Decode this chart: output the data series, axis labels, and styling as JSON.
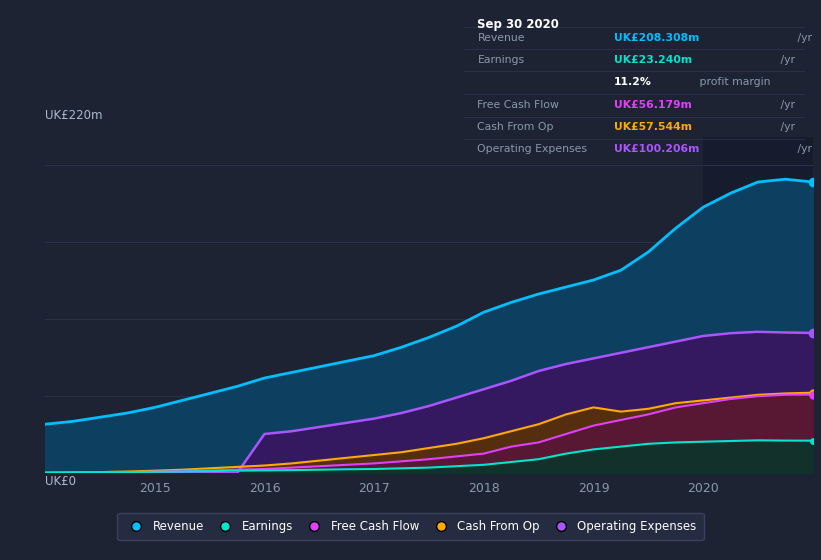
{
  "background_color": "#1e2333",
  "plot_bg_color": "#1e2333",
  "ylabel_top": "UK£220m",
  "ylabel_bottom": "UK£0",
  "years": [
    2014.0,
    2014.25,
    2014.5,
    2014.75,
    2015.0,
    2015.25,
    2015.5,
    2015.75,
    2016.0,
    2016.25,
    2016.5,
    2016.75,
    2017.0,
    2017.25,
    2017.5,
    2017.75,
    2018.0,
    2018.25,
    2018.5,
    2018.75,
    2019.0,
    2019.25,
    2019.5,
    2019.75,
    2020.0,
    2020.25,
    2020.5,
    2020.75,
    2021.0
  ],
  "revenue": [
    35,
    37,
    40,
    43,
    47,
    52,
    57,
    62,
    68,
    72,
    76,
    80,
    84,
    90,
    97,
    105,
    115,
    122,
    128,
    133,
    138,
    145,
    158,
    175,
    190,
    200,
    208,
    210,
    208
  ],
  "earnings": [
    0.5,
    0.6,
    0.7,
    0.8,
    1.0,
    1.2,
    1.5,
    1.8,
    2.0,
    2.2,
    2.5,
    2.8,
    3.0,
    3.5,
    4.0,
    5.0,
    6.0,
    8.0,
    10.0,
    14.0,
    17.0,
    19.0,
    21.0,
    22.0,
    22.5,
    23.0,
    23.5,
    23.3,
    23.24
  ],
  "free_cash_flow": [
    0.2,
    0.3,
    0.5,
    0.8,
    1.0,
    1.5,
    2.0,
    2.5,
    3.0,
    4.0,
    5.0,
    6.0,
    7.0,
    8.5,
    10.0,
    12.0,
    14.0,
    19.0,
    22.0,
    28.0,
    34.0,
    38.0,
    42.0,
    47.0,
    50.0,
    53.0,
    55.0,
    56.0,
    56.2
  ],
  "cash_from_op": [
    0.3,
    0.5,
    0.8,
    1.2,
    1.8,
    2.5,
    3.5,
    4.5,
    5.5,
    7.0,
    9.0,
    11.0,
    13.0,
    15.0,
    18.0,
    21.0,
    25.0,
    30.0,
    35.0,
    42.0,
    47.0,
    44.0,
    46.0,
    50.0,
    52.0,
    54.0,
    56.0,
    57.0,
    57.5
  ],
  "op_expenses": [
    0.0,
    0.0,
    0.0,
    0.0,
    0.0,
    0.0,
    0.0,
    0.0,
    28.0,
    30.0,
    33.0,
    36.0,
    39.0,
    43.0,
    48.0,
    54.0,
    60.0,
    66.0,
    73.0,
    78.0,
    82.0,
    86.0,
    90.0,
    94.0,
    98.0,
    100.0,
    101.0,
    100.5,
    100.2
  ],
  "revenue_color": "#00bfff",
  "earnings_color": "#00e5cc",
  "free_cash_flow_color": "#e040fb",
  "cash_from_op_color": "#ffaa00",
  "op_expenses_color": "#aa55ff",
  "grid_color": "#2a3050",
  "highlight_color": "#161c2e",
  "annotation_box_color": "#080d18",
  "annotation_title": "Sep 30 2020",
  "ann_rows": [
    {
      "label": "Revenue",
      "value": "UK£208.308m",
      "suffix": " /yr",
      "color": "#00bfff"
    },
    {
      "label": "Earnings",
      "value": "UK£23.240m",
      "suffix": " /yr",
      "color": "#00e5cc"
    },
    {
      "label": "",
      "value": "11.2%",
      "suffix": " profit margin",
      "color": "#ffffff"
    },
    {
      "label": "Free Cash Flow",
      "value": "UK£56.179m",
      "suffix": " /yr",
      "color": "#e040fb"
    },
    {
      "label": "Cash From Op",
      "value": "UK£57.544m",
      "suffix": " /yr",
      "color": "#ffaa00"
    },
    {
      "label": "Operating Expenses",
      "value": "UK£100.206m",
      "suffix": " /yr",
      "color": "#aa55ff"
    }
  ],
  "legend_labels": [
    "Revenue",
    "Earnings",
    "Free Cash Flow",
    "Cash From Op",
    "Operating Expenses"
  ],
  "legend_colors": [
    "#00bfff",
    "#00e5cc",
    "#e040fb",
    "#ffaa00",
    "#aa55ff"
  ],
  "ylim": [
    0,
    240
  ],
  "xlim_start": 2014.0,
  "xlim_end": 2021.0,
  "highlight_x_start": 2020.0,
  "xticks": [
    2015,
    2016,
    2017,
    2018,
    2019,
    2020
  ]
}
